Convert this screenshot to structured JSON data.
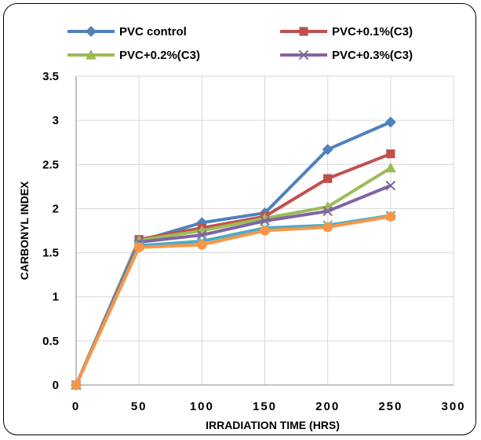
{
  "chart_data": {
    "type": "line",
    "title": "",
    "xlabel": "IRRADIATION TIME (HRS)",
    "ylabel": "CARBONYL INDEX",
    "xlim": [
      0,
      300
    ],
    "ylim": [
      0,
      3.5
    ],
    "x_ticks": [
      "0",
      "50",
      "100",
      "150",
      "200",
      "250",
      "300"
    ],
    "y_ticks": [
      "0",
      "0.5",
      "1",
      "1.5",
      "2",
      "2.5",
      "3",
      "3.5"
    ],
    "grid": true,
    "legend_position": "top",
    "x": [
      0,
      50,
      100,
      150,
      200,
      250
    ],
    "series": [
      {
        "name": "PVC control",
        "color": "#4F81BD",
        "marker": "diamond",
        "values": [
          0,
          1.63,
          1.84,
          1.95,
          2.67,
          2.98
        ]
      },
      {
        "name": "PVC+0.1%(C3)",
        "color": "#C0504D",
        "marker": "square",
        "values": [
          0,
          1.65,
          1.78,
          1.91,
          2.34,
          2.62
        ]
      },
      {
        "name": "PVC+0.2%(C3)",
        "color": "#9BBB59",
        "marker": "triangle",
        "values": [
          0,
          1.64,
          1.75,
          1.89,
          2.02,
          2.46
        ]
      },
      {
        "name": "PVC+0.3%(C3)",
        "color": "#8064A2",
        "marker": "x",
        "values": [
          0,
          1.62,
          1.7,
          1.86,
          1.97,
          2.26
        ]
      },
      {
        "name": "",
        "color": "#4BACC6",
        "marker": "x",
        "values": [
          0,
          1.58,
          1.63,
          1.78,
          1.81,
          1.92
        ]
      },
      {
        "name": "",
        "color": "#F79646",
        "marker": "circle",
        "values": [
          0,
          1.56,
          1.59,
          1.75,
          1.79,
          1.91
        ]
      }
    ]
  }
}
